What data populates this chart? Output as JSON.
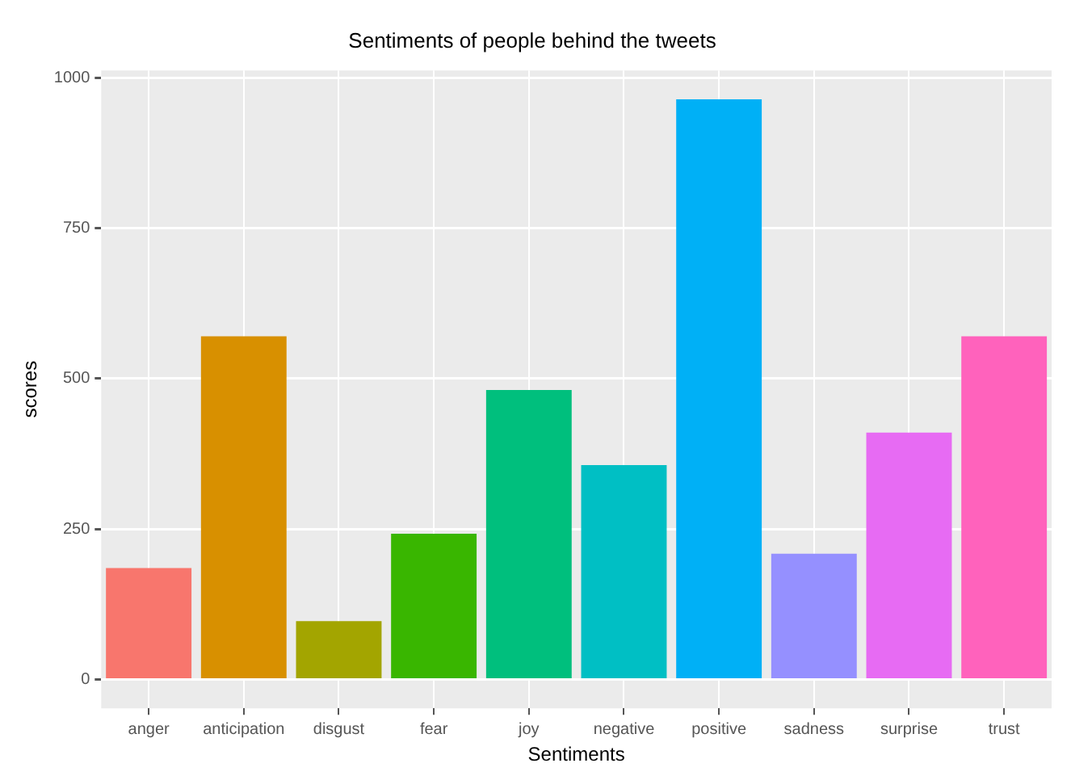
{
  "chart_data": {
    "type": "bar",
    "title": "Sentiments of people behind the tweets",
    "xlabel": "Sentiments",
    "ylabel": "scores",
    "categories": [
      "anger",
      "anticipation",
      "disgust",
      "fear",
      "joy",
      "negative",
      "positive",
      "sadness",
      "surprise",
      "trust"
    ],
    "values": [
      185,
      570,
      97,
      242,
      481,
      356,
      964,
      209,
      410,
      570
    ],
    "colors": [
      "#f8766d",
      "#d89000",
      "#a3a500",
      "#39b600",
      "#00bf7d",
      "#00bfc4",
      "#00b0f6",
      "#9590ff",
      "#e76bf3",
      "#ff62bc"
    ],
    "ylim": [
      -48,
      1012
    ],
    "yticks": [
      0,
      250,
      500,
      750,
      1000
    ],
    "grid": true
  }
}
